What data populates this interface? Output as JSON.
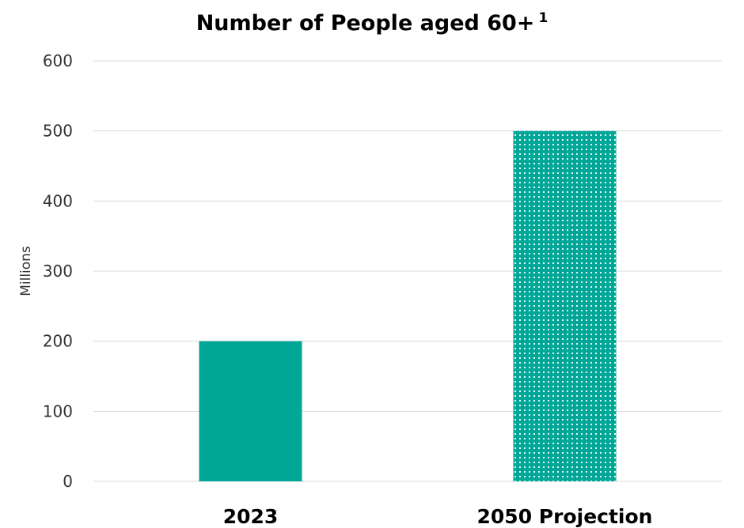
{
  "chart_data": {
    "type": "bar",
    "title": "Number of People aged 60+",
    "title_superscript": "1",
    "xlabel": "",
    "ylabel": "Millions",
    "categories": [
      "2023",
      "2050 Projection"
    ],
    "values": [
      200,
      500
    ],
    "ylim": [
      0,
      600
    ],
    "yticks": [
      0,
      100,
      200,
      300,
      400,
      500,
      600
    ],
    "grid": true,
    "legend": "none",
    "colors": {
      "bar": "#00a797",
      "bar_pattern_dot": "#ffffff",
      "gridline": "#d9d9d9"
    },
    "bar_styles": [
      "solid",
      "dotted"
    ]
  }
}
